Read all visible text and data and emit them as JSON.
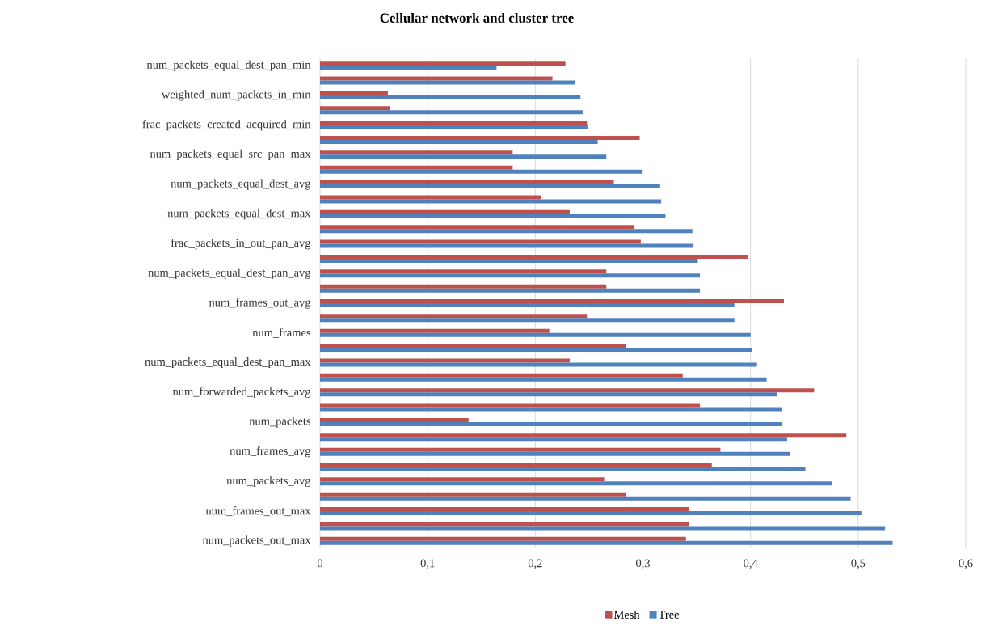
{
  "chart_data": {
    "type": "bar",
    "orientation": "horizontal",
    "title": "Cellular network and cluster tree",
    "categories": [
      "num_packets_equal_dest_pan_min",
      null,
      "weighted_num_packets_in_min",
      null,
      "frac_packets_created_acquired_min",
      null,
      "num_packets_equal_src_pan_max",
      null,
      "num_packets_equal_dest_avg",
      null,
      "num_packets_equal_dest_max",
      null,
      "frac_packets_in_out_pan_avg",
      null,
      "num_packets_equal_dest_pan_avg",
      null,
      "num_frames_out_avg",
      null,
      "num_frames",
      null,
      "num_packets_equal_dest_pan_max",
      null,
      "num_forwarded_packets_avg",
      null,
      "num_packets",
      null,
      "num_frames_avg",
      null,
      "num_packets_avg",
      null,
      "num_frames_out_max",
      null,
      "num_packets_out_max"
    ],
    "series": [
      {
        "name": "Mesh",
        "color": "#c0504d",
        "values": [
          0.228,
          0.216,
          0.063,
          0.065,
          0.248,
          0.297,
          0.179,
          0.179,
          0.273,
          0.205,
          0.232,
          0.292,
          0.298,
          0.398,
          0.266,
          0.266,
          0.431,
          0.248,
          0.213,
          0.284,
          0.232,
          0.337,
          0.459,
          0.353,
          0.138,
          0.489,
          0.372,
          0.364,
          0.264,
          0.284,
          0.343,
          0.343,
          0.34
        ]
      },
      {
        "name": "Tree",
        "color": "#4f81bd",
        "values": [
          0.164,
          0.237,
          0.242,
          0.244,
          0.249,
          0.258,
          0.266,
          0.299,
          0.316,
          0.317,
          0.321,
          0.346,
          0.347,
          0.351,
          0.353,
          0.353,
          0.385,
          0.385,
          0.4,
          0.401,
          0.406,
          0.415,
          0.425,
          0.429,
          0.429,
          0.434,
          0.437,
          0.451,
          0.476,
          0.493,
          0.503,
          0.525,
          0.532
        ]
      }
    ],
    "xlim": [
      0,
      0.6
    ],
    "xticks": [
      0,
      {
        "value": 0.1,
        "label": "0,1"
      },
      {
        "value": 0.2,
        "label": "0,2"
      },
      {
        "value": 0.3,
        "label": "0,3"
      },
      {
        "value": 0.4,
        "label": "0,4"
      },
      {
        "value": 0.5,
        "label": "0,5"
      },
      {
        "value": 0.6,
        "label": "0,6"
      }
    ],
    "grid": "x",
    "legend": "bottom"
  }
}
